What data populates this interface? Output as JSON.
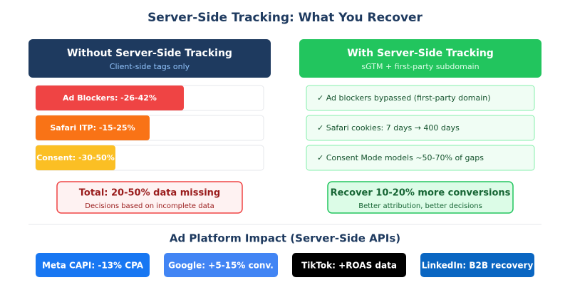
{
  "title": "Server-Side Tracking: What You Recover",
  "without": {
    "title": "Without Server-Side Tracking",
    "subtitle": "Client-side tags only",
    "items": [
      "Ad Blockers: -26-42%",
      "Safari ITP: -15-25%",
      "Consent: -30-50%"
    ],
    "summary": {
      "title": "Total: 20-50% data missing",
      "subtitle": "Decisions based on incomplete data"
    }
  },
  "with": {
    "title": "With Server-Side Tracking",
    "subtitle": "sGTM + first-party subdomain",
    "items": [
      "✓ Ad blockers bypassed (first-party domain)",
      "✓ Safari cookies: 7 days → 400 days",
      "✓ Consent Mode models ~50-70% of gaps"
    ],
    "summary": {
      "title": "Recover 10-20% more conversions",
      "subtitle": "Better attribution, better decisions"
    }
  },
  "platforms": {
    "title": "Ad Platform Impact (Server-Side APIs)",
    "items": [
      "Meta CAPI: -13% CPA",
      "Google: +5-15% conv.",
      "TikTok: +ROAS data",
      "LinkedIn: B2B recovery"
    ]
  }
}
